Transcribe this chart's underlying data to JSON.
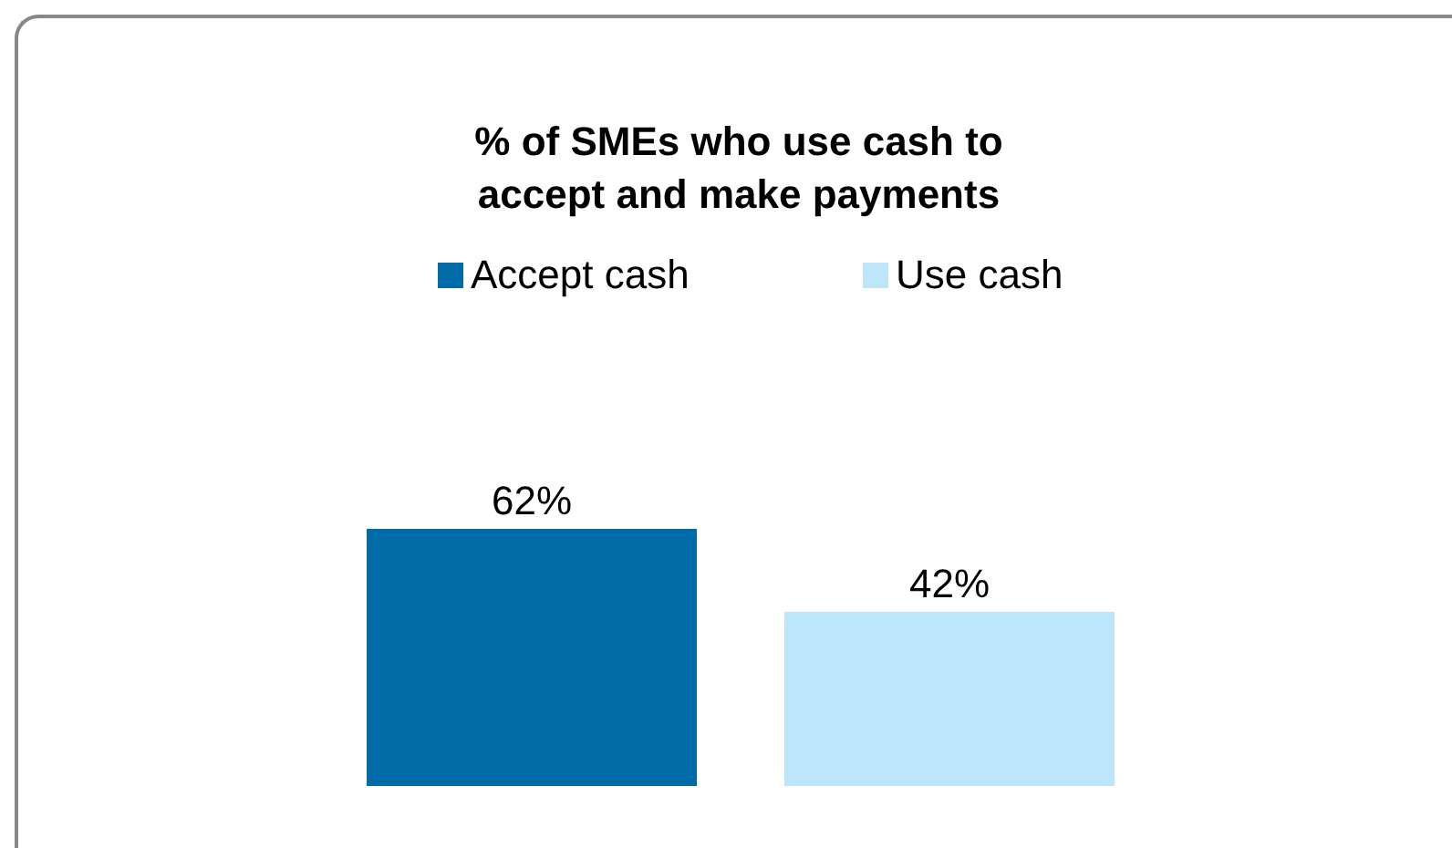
{
  "chart_data": {
    "type": "bar",
    "title": "% of SMEs who use cash to accept and make payments",
    "categories": [
      null
    ],
    "series": [
      {
        "name": "Accept cash",
        "color": "#006ba6",
        "values": [
          62
        ],
        "value_labels": [
          "62%"
        ]
      },
      {
        "name": "Use cash",
        "color": "#bde6fb",
        "values": [
          42
        ],
        "value_labels": [
          "42%"
        ]
      }
    ],
    "legend": "top"
  }
}
